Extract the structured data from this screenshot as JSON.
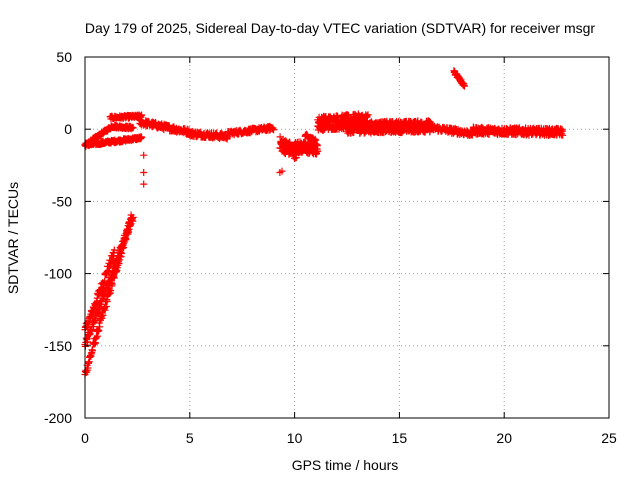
{
  "chart_data": {
    "type": "scatter",
    "title": "Day 179 of 2025, Sidereal Day-to-day VTEC variation (SDTVAR) for receiver msgr",
    "xlabel": "GPS time / hours",
    "ylabel": "SDTVAR / TECUs",
    "xlim": [
      0,
      25
    ],
    "ylim": [
      -200,
      50
    ],
    "xticks": [
      "0",
      "5",
      "10",
      "15",
      "20",
      "25"
    ],
    "yticks": [
      "50",
      "0",
      "-50",
      "-100",
      "-150",
      "-200"
    ],
    "grid": true,
    "marker": "plus",
    "color": "#ff0000",
    "segments": [
      {
        "x0": 0.0,
        "x1": 2.3,
        "y0": -150,
        "y1": -60,
        "noise": 3,
        "step": 0.02
      },
      {
        "x0": 0.0,
        "x1": 1.4,
        "y0": -140,
        "y1": -85,
        "noise": 3,
        "step": 0.02
      },
      {
        "x0": 0.0,
        "x1": 2.2,
        "y0": -170,
        "y1": -62,
        "noise": 3,
        "step": 0.02
      },
      {
        "x0": 0.0,
        "x1": 1.3,
        "y0": -11,
        "y1": 2,
        "noise": 1,
        "step": 0.02
      },
      {
        "x0": 1.3,
        "x1": 2.3,
        "y0": 2,
        "y1": 1,
        "noise": 1,
        "step": 0.02
      },
      {
        "x0": 0.0,
        "x1": 2.7,
        "y0": -11,
        "y1": -6,
        "noise": 1,
        "step": 0.02
      },
      {
        "x0": 1.2,
        "x1": 2.7,
        "y0": 8,
        "y1": 9,
        "noise": 1,
        "step": 0.02
      },
      {
        "x0": 2.6,
        "x1": 5.0,
        "y0": 5,
        "y1": -2,
        "noise": 2,
        "step": 0.02
      },
      {
        "x0": 5.0,
        "x1": 6.8,
        "y0": -3,
        "y1": -5,
        "noise": 2,
        "step": 0.02
      },
      {
        "x0": 6.8,
        "x1": 9.0,
        "y0": -3,
        "y1": 1,
        "noise": 1.5,
        "step": 0.02
      },
      {
        "x0": 9.3,
        "x1": 10.1,
        "y0": -10,
        "y1": -16,
        "noise": 5,
        "step": 0.01
      },
      {
        "x0": 10.0,
        "x1": 11.1,
        "y0": -12,
        "y1": -14,
        "noise": 4,
        "step": 0.01
      },
      {
        "x0": 10.5,
        "x1": 11.0,
        "y0": -4,
        "y1": -8,
        "noise": 1,
        "step": 0.02
      },
      {
        "x0": 11.1,
        "x1": 13.5,
        "y0": 4,
        "y1": 6,
        "noise": 5,
        "step": 0.01
      },
      {
        "x0": 12.5,
        "x1": 16.5,
        "y0": 1,
        "y1": 2,
        "noise": 4,
        "step": 0.01
      },
      {
        "x0": 16.5,
        "x1": 18.5,
        "y0": 1,
        "y1": -3,
        "noise": 2,
        "step": 0.02
      },
      {
        "x0": 18.5,
        "x1": 22.8,
        "y0": -1,
        "y1": -2,
        "noise": 2.5,
        "step": 0.015
      },
      {
        "x0": 17.6,
        "x1": 18.1,
        "y0": 40,
        "y1": 30,
        "noise": 1,
        "step": 0.02
      }
    ],
    "points": [
      {
        "x": 2.8,
        "y": -18
      },
      {
        "x": 2.8,
        "y": -30
      },
      {
        "x": 2.8,
        "y": -38
      },
      {
        "x": 9.3,
        "y": -30
      },
      {
        "x": 9.4,
        "y": -29
      }
    ]
  }
}
